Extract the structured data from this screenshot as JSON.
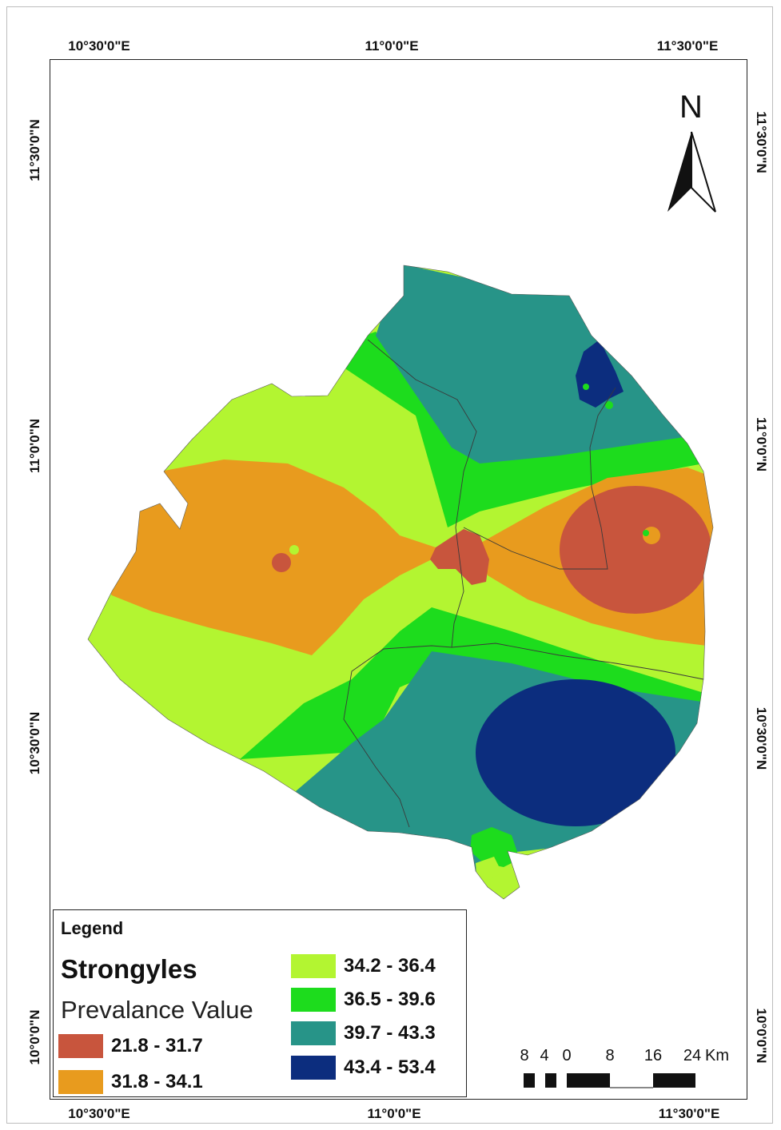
{
  "grid_labels": {
    "top": [
      "10°30'0\"E",
      "11°0'0\"E",
      "11°30'0\"E"
    ],
    "bottom": [
      "10°30'0\"E",
      "11°0'0\"E",
      "11°30'0\"E"
    ],
    "left": [
      "11°30'0\"N",
      "11°0'0\"N",
      "10°30'0\"N",
      "10°0'0\"N"
    ],
    "right": [
      "11°30'0\"N",
      "11°0'0\"N",
      "10°30'0\"N",
      "10°0'0\"N"
    ]
  },
  "north_arrow": {
    "label": "N",
    "icon": "north-arrow-icon"
  },
  "legend": {
    "heading": "Legend",
    "layer": "Strongyles",
    "field": "Prevalance Value",
    "classes": [
      {
        "label": "21.8 - 31.7",
        "color": "#c8553d"
      },
      {
        "label": "31.8 - 34.1",
        "color": "#e89b1e"
      },
      {
        "label": "34.2 - 36.4",
        "color": "#b3f531"
      },
      {
        "label": "36.5 - 39.6",
        "color": "#1ddc1d"
      },
      {
        "label": "39.7 - 43.3",
        "color": "#279488"
      },
      {
        "label": "43.4 - 53.4",
        "color": "#0c2d7e"
      }
    ]
  },
  "scale_bar": {
    "labels": [
      "8",
      "4",
      "0",
      "8",
      "16",
      "24"
    ],
    "unit": "Km"
  }
}
